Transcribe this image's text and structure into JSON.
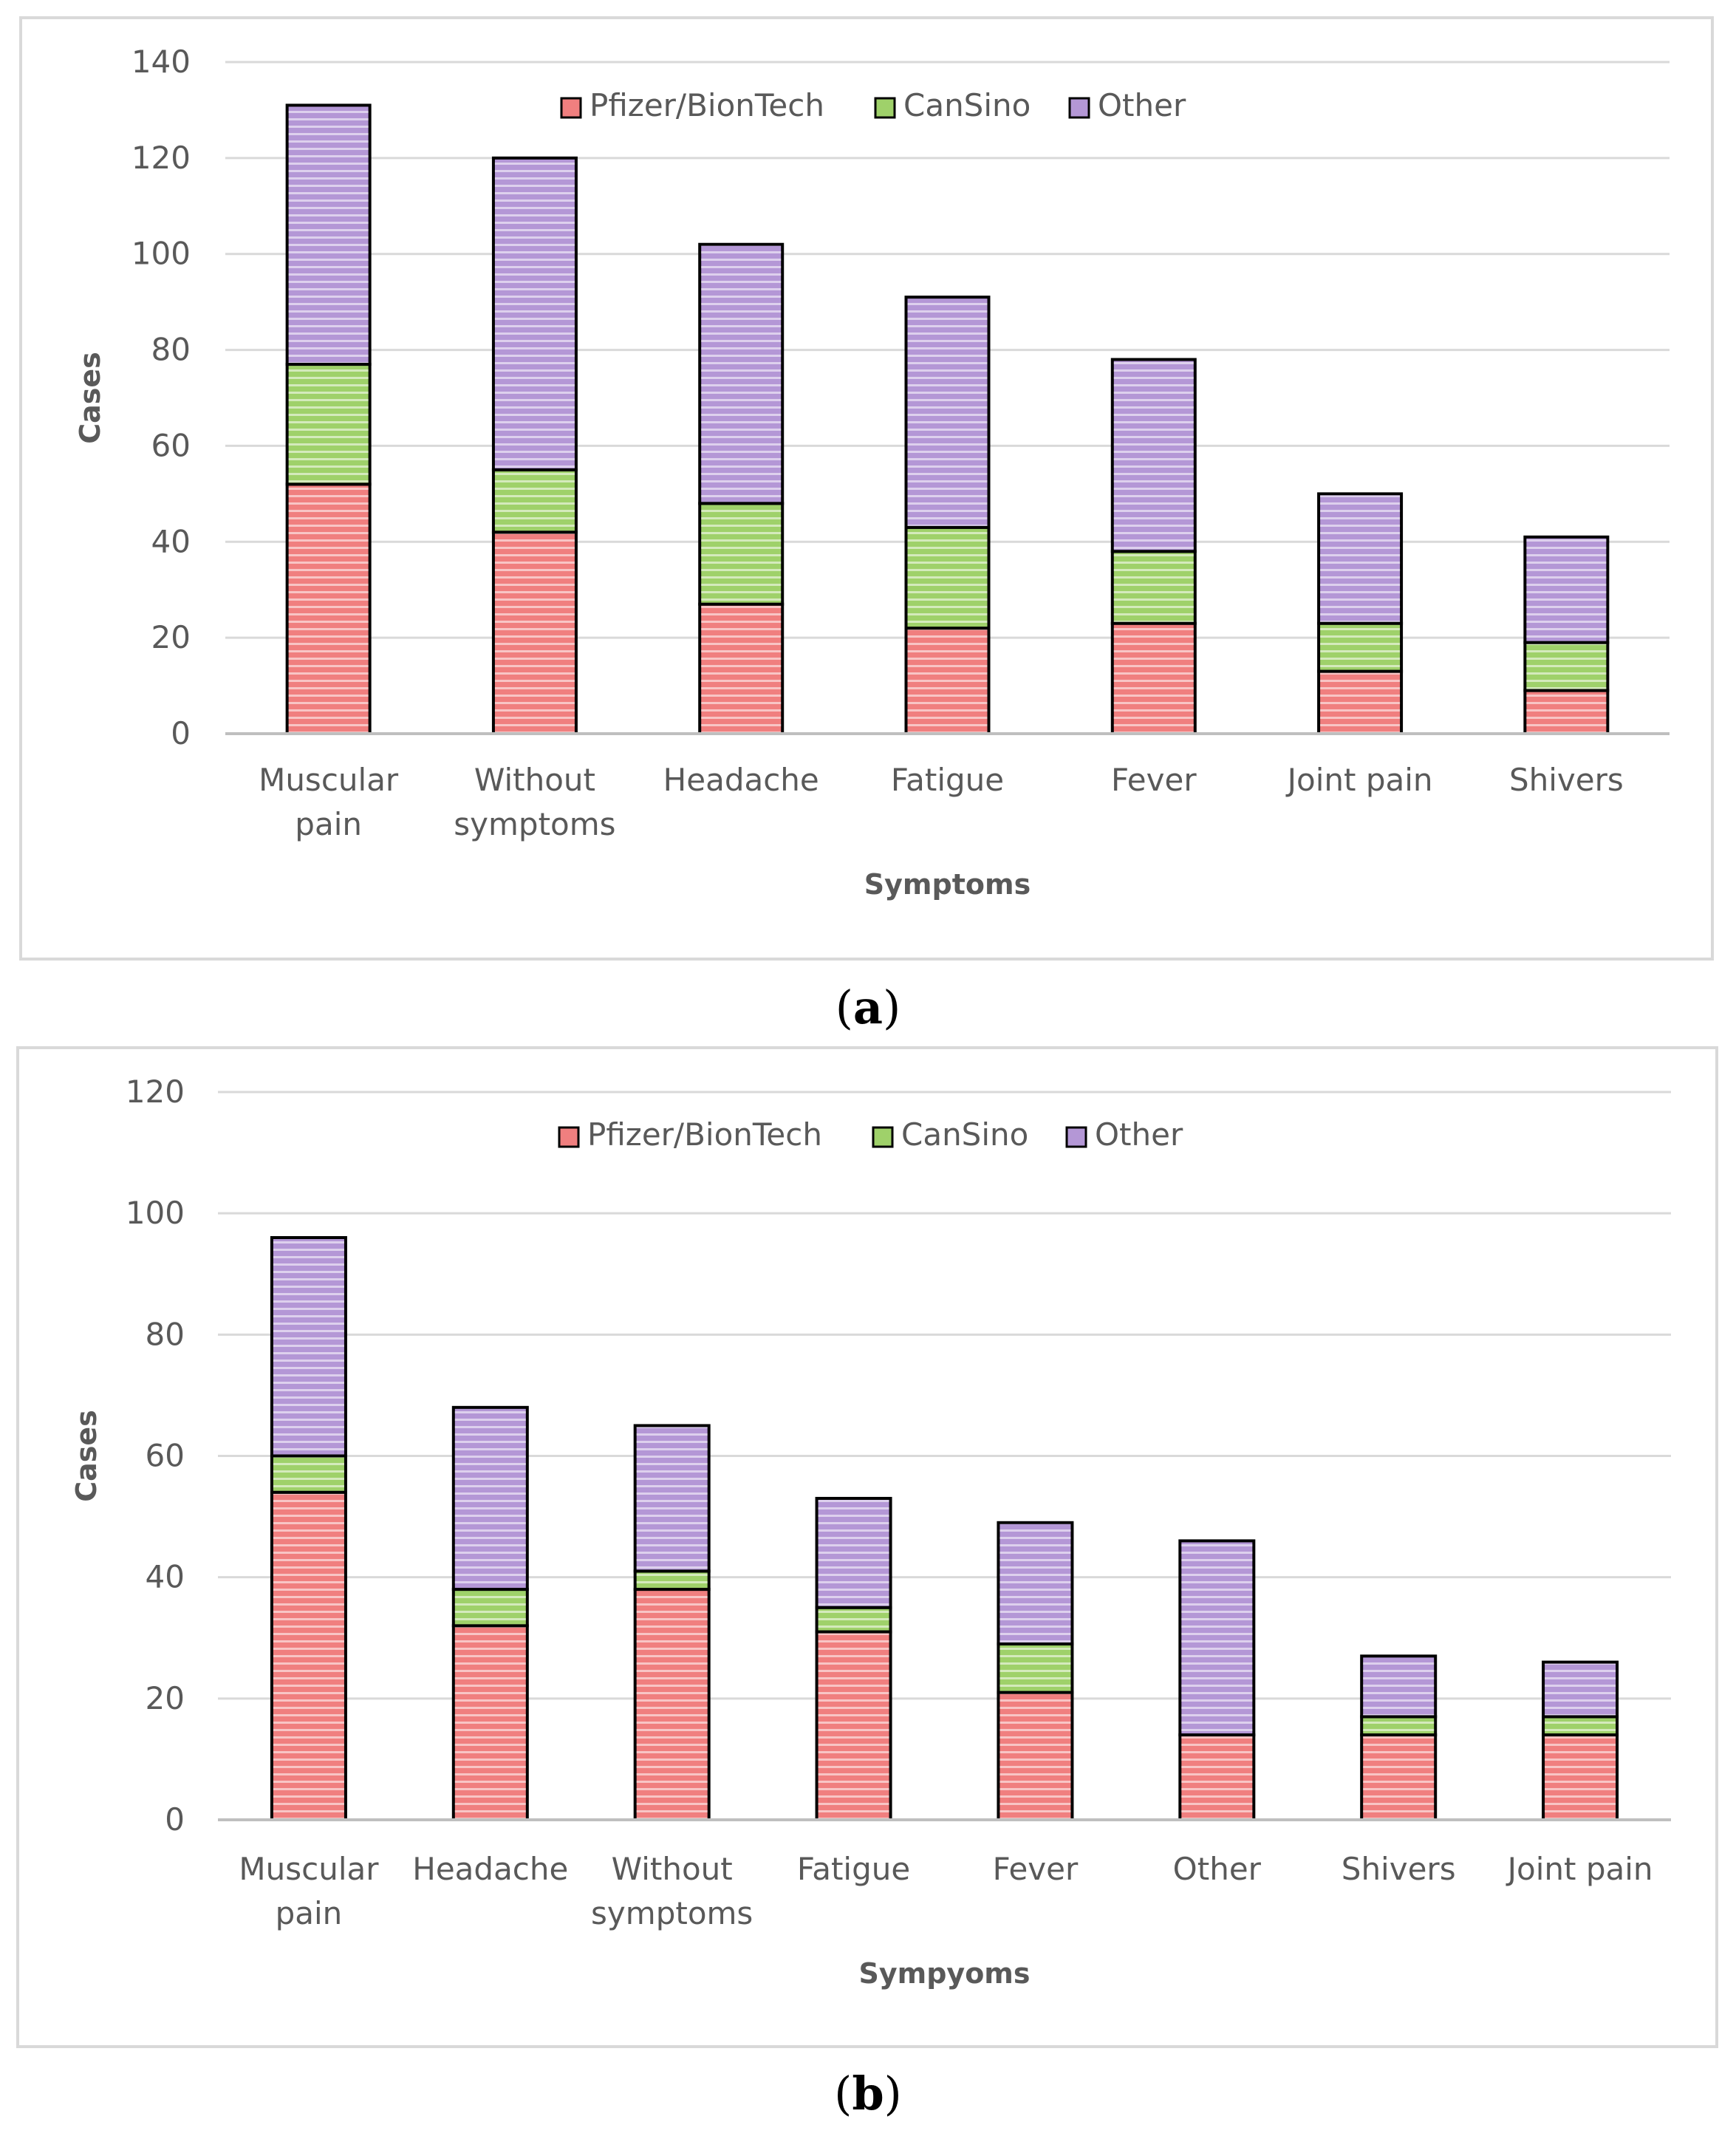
{
  "colors": {
    "pfizer": "#f07f7f",
    "cansino": "#9fd16a",
    "other": "#b497d6",
    "stripe": "#ffffff",
    "bar_edge": "#000000",
    "grid": "#d9d9d9",
    "axis": "#bfbfbf",
    "frame": "#d9d9d9"
  },
  "chart_data": [
    {
      "type": "bar",
      "stacked": true,
      "panel": "a",
      "xlabel": "Symptoms",
      "ylabel": "Cases",
      "ylim": [
        0,
        140
      ],
      "yticks": [
        0,
        20,
        40,
        60,
        80,
        100,
        120,
        140
      ],
      "categories": [
        [
          "Muscular",
          "pain"
        ],
        [
          "Without",
          "symptoms"
        ],
        [
          "Headache"
        ],
        [
          "Fatigue"
        ],
        [
          "Fever"
        ],
        [
          "Joint pain"
        ],
        [
          "Shivers"
        ]
      ],
      "legend_position": "top-center",
      "series": [
        {
          "name": "Pfizer/BionTech",
          "color_key": "pfizer",
          "values": [
            52,
            42,
            27,
            22,
            23,
            13,
            9
          ]
        },
        {
          "name": "CanSino",
          "color_key": "cansino",
          "values": [
            25,
            13,
            21,
            21,
            15,
            10,
            10
          ]
        },
        {
          "name": "Other",
          "color_key": "other",
          "values": [
            54,
            65,
            54,
            48,
            40,
            27,
            22
          ]
        }
      ]
    },
    {
      "type": "bar",
      "stacked": true,
      "panel": "b",
      "xlabel": "Sympyoms",
      "ylabel": "Cases",
      "ylim": [
        0,
        120
      ],
      "yticks": [
        0,
        20,
        40,
        60,
        80,
        100,
        120
      ],
      "categories": [
        [
          "Muscular",
          "pain"
        ],
        [
          "Headache"
        ],
        [
          "Without",
          "symptoms"
        ],
        [
          "Fatigue"
        ],
        [
          "Fever"
        ],
        [
          "Other"
        ],
        [
          "Shivers"
        ],
        [
          "Joint pain"
        ]
      ],
      "legend_position": "top-center",
      "series": [
        {
          "name": "Pfizer/BionTech",
          "color_key": "pfizer",
          "values": [
            54,
            32,
            38,
            31,
            21,
            14,
            14,
            14
          ]
        },
        {
          "name": "CanSino",
          "color_key": "cansino",
          "values": [
            6,
            6,
            3,
            4,
            8,
            0,
            3,
            3
          ]
        },
        {
          "name": "Other",
          "color_key": "other",
          "values": [
            36,
            30,
            24,
            18,
            20,
            32,
            10,
            9
          ]
        }
      ]
    }
  ],
  "panel_labels": {
    "a": {
      "open": "(",
      "letter": "a",
      "close": ")"
    },
    "b": {
      "open": "(",
      "letter": "b",
      "close": ")"
    }
  }
}
